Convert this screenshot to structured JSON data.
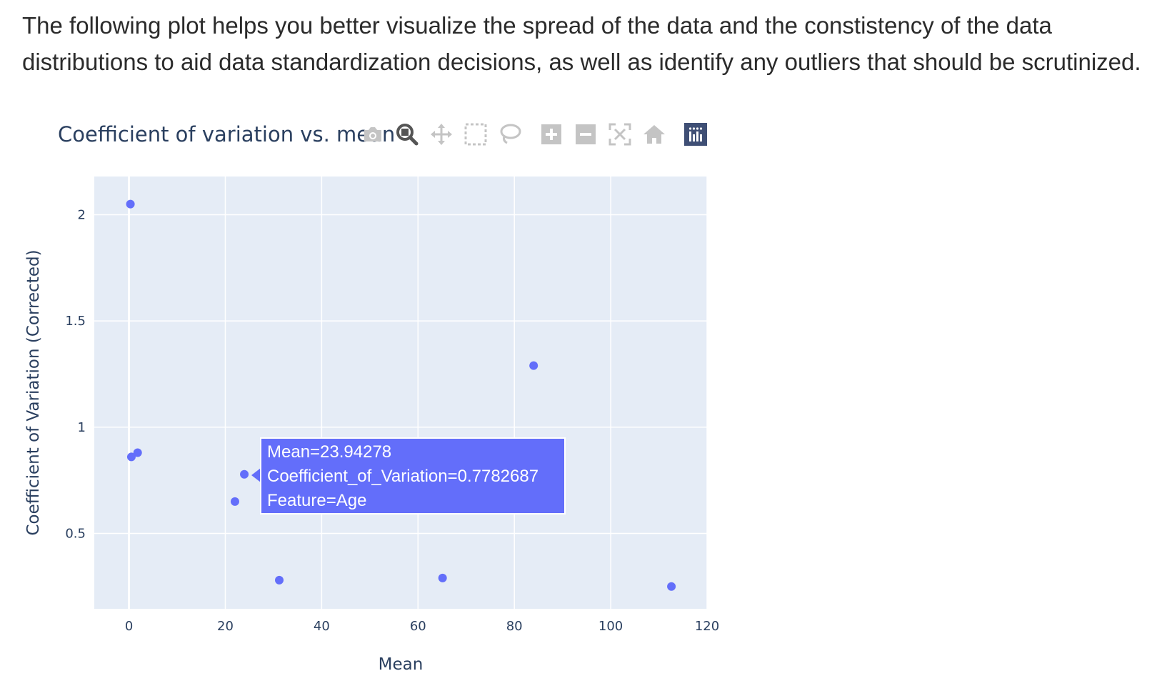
{
  "intro_text": "The following plot helps you better visualize the spread of the data and the constistency of the data distributions to aid data standardization decisions, as well as identify any outliers that should be scrutinized.",
  "plot_title": "Coefficient of variation vs. mean",
  "modebar": {
    "buttons": [
      "camera-icon",
      "zoom-icon",
      "pan-icon",
      "box-select-icon",
      "lasso-icon",
      "zoom-in-icon",
      "zoom-out-icon",
      "autoscale-icon",
      "reset-axes-icon",
      "plotly-logo-icon"
    ],
    "active": "zoom-icon"
  },
  "colors": {
    "marker": "#636efa",
    "plot_background": "#e5ecf6",
    "grid": "#ffffff",
    "text": "#2a3f5f"
  },
  "chart_data": {
    "type": "scatter",
    "title": "Coefficient of variation vs. mean",
    "xlabel": "Mean",
    "ylabel": "Coefficient of Variation (Corrected)",
    "xlim": [
      -7.2,
      120
    ],
    "ylim": [
      0.145,
      2.18
    ],
    "xticks": [
      0,
      20,
      40,
      60,
      80,
      100,
      120
    ],
    "yticks": [
      0.5,
      1,
      1.5,
      2
    ],
    "xtick_labels": [
      "0",
      "20",
      "40",
      "60",
      "80",
      "100",
      "120"
    ],
    "ytick_labels": [
      "0.5",
      "1",
      "1.5",
      "2"
    ],
    "grid": true,
    "points": [
      {
        "x": 0.3,
        "y": 2.05
      },
      {
        "x": 0.5,
        "y": 0.86
      },
      {
        "x": 1.8,
        "y": 0.88
      },
      {
        "x": 22.0,
        "y": 0.65
      },
      {
        "x": 23.94278,
        "y": 0.7782687
      },
      {
        "x": 31.2,
        "y": 0.28
      },
      {
        "x": 65.1,
        "y": 0.29
      },
      {
        "x": 84.0,
        "y": 1.29
      },
      {
        "x": 112.6,
        "y": 0.25
      }
    ],
    "hover": {
      "lines": [
        "Mean=23.94278",
        "Coefficient_of_Variation=0.7782687",
        "Feature=Age"
      ]
    }
  }
}
